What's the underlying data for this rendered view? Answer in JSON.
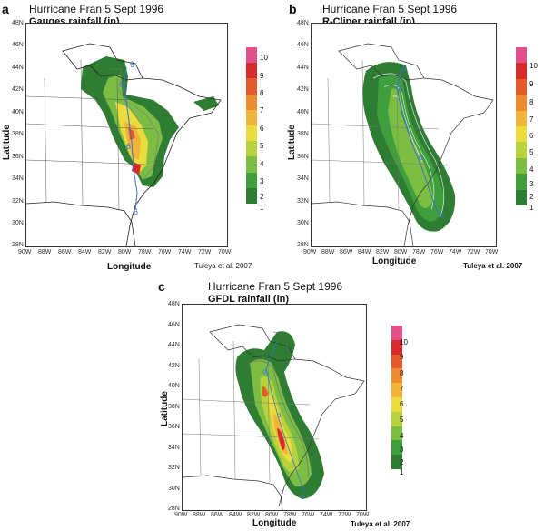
{
  "panels": [
    {
      "letter": "a",
      "title": "Hurricane Fran 5 Sept 1996",
      "subtitle": "Gauges rainfall (in)",
      "xlabel": "Longitude",
      "ylabel": "Latitude",
      "credit": "Tuleya et al. 2007",
      "lat_ticks": [
        "48N",
        "46N",
        "44N",
        "42N",
        "40N",
        "38N",
        "36N",
        "34N",
        "32N",
        "30N",
        "28N"
      ],
      "lon_ticks": [
        "90W",
        "88W",
        "86W",
        "84W",
        "82W",
        "80W",
        "78W",
        "76W",
        "74W",
        "72W",
        "70W"
      ]
    },
    {
      "letter": "b",
      "title": "Hurricane Fran 5 Sept 1996",
      "subtitle": "R-Cliper rainfall (in)",
      "xlabel": "Longitude",
      "ylabel": "Latitude",
      "credit": "Tuleya et al. 2007",
      "lat_ticks": [
        "48N",
        "46N",
        "44N",
        "42N",
        "40N",
        "38N",
        "36N",
        "34N",
        "32N",
        "30N",
        "28N"
      ],
      "lon_ticks": [
        "90W",
        "88W",
        "86W",
        "84W",
        "82W",
        "80W",
        "78W",
        "76W",
        "74W",
        "72W",
        "70W"
      ]
    },
    {
      "letter": "c",
      "title": "Hurricane Fran 5 Sept 1996",
      "subtitle": "GFDL rainfall (in)",
      "xlabel": "Longitude",
      "ylabel": "Latitude",
      "credit": "Tuleya et al. 2007",
      "lat_ticks": [
        "48N",
        "46N",
        "44N",
        "42N",
        "40N",
        "38N",
        "36N",
        "34N",
        "32N",
        "30N",
        "28N"
      ],
      "lon_ticks": [
        "90W",
        "88W",
        "86W",
        "84W",
        "82W",
        "80W",
        "78W",
        "76W",
        "74W",
        "72W",
        "70W"
      ]
    }
  ],
  "legend": {
    "levels": [
      "10",
      "9",
      "8",
      "7",
      "6",
      "5",
      "4",
      "3",
      "2",
      "1"
    ],
    "colors": [
      "#e0508a",
      "#d82a2a",
      "#e55a2a",
      "#ee8a30",
      "#f0b43a",
      "#eadc3c",
      "#b8d23e",
      "#7cbe44",
      "#3f9f3c",
      "#2e7d32"
    ]
  }
}
